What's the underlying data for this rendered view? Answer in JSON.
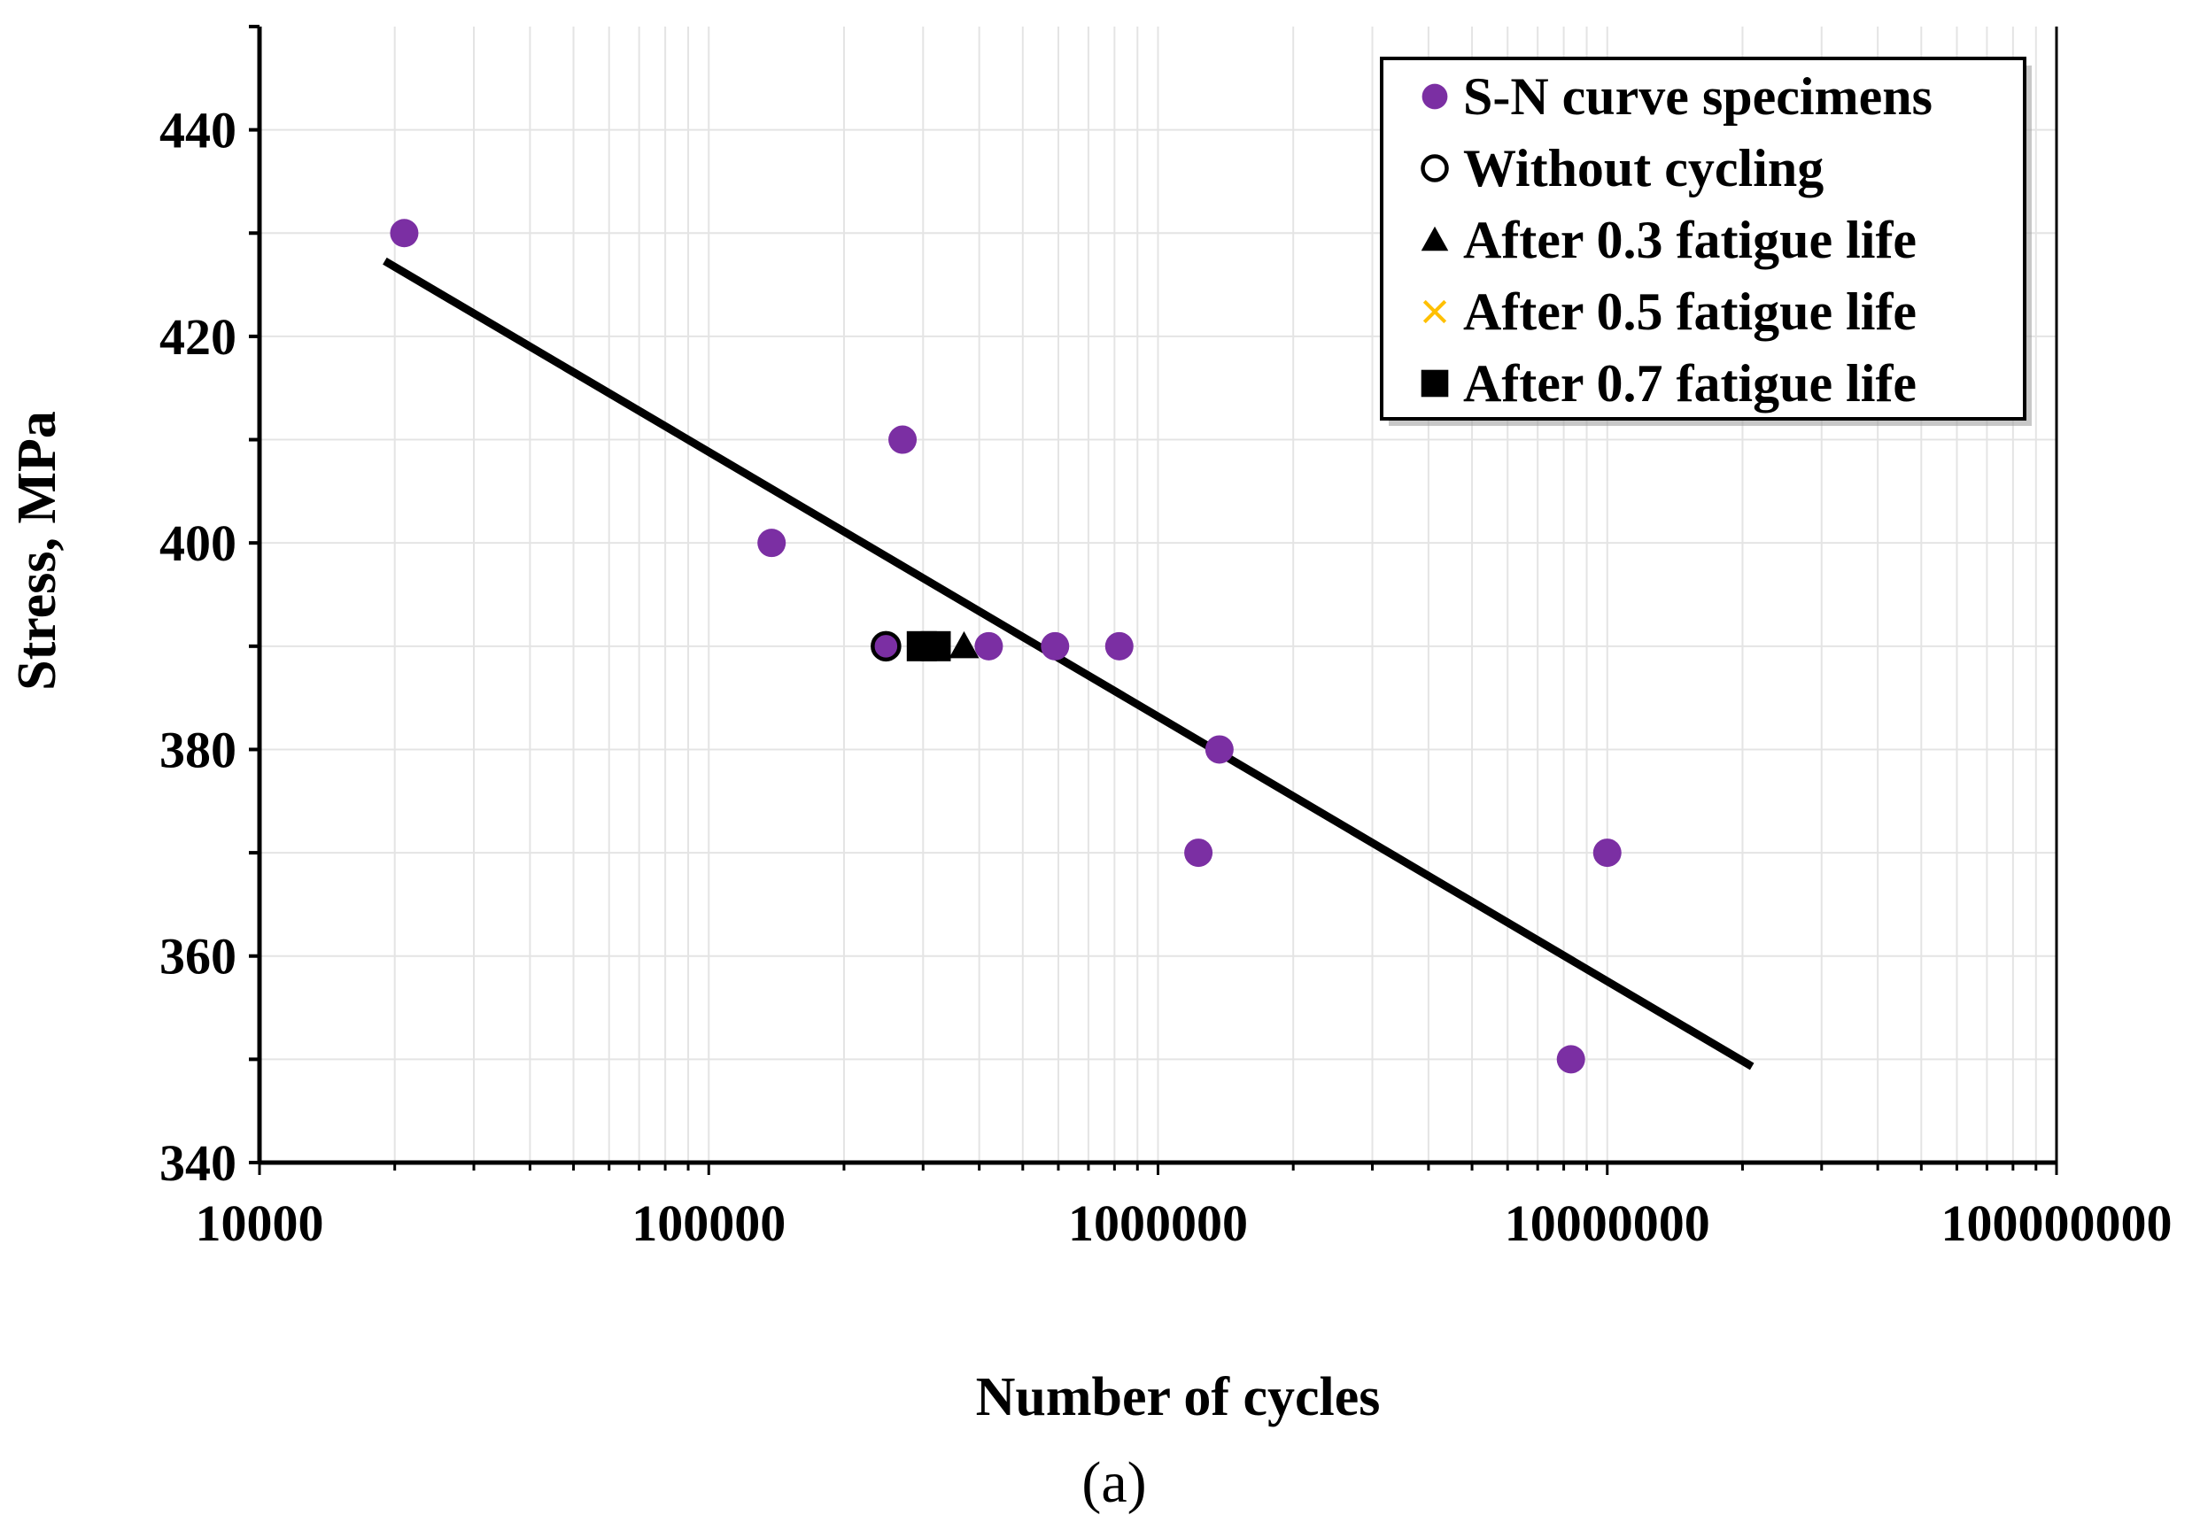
{
  "chart_data": {
    "type": "scatter",
    "xscale": "log",
    "xlabel": "Number of cycles",
    "ylabel": "Stress, MPa",
    "caption": "(a)",
    "xlim": [
      10000,
      100000000
    ],
    "ylim": [
      340,
      450
    ],
    "xticks": [
      10000,
      100000,
      1000000,
      10000000,
      100000000
    ],
    "xtick_labels": [
      "10000",
      "100000",
      "1000000",
      "10000000",
      "100000000"
    ],
    "yticks": [
      340,
      360,
      380,
      400,
      420,
      440
    ],
    "ytick_labels": [
      "340",
      "360",
      "380",
      "400",
      "420",
      "440"
    ],
    "grid": true,
    "legend_position": "top-right",
    "series": [
      {
        "name": "S-N curve specimens",
        "marker": "circle",
        "color": "#7B2FA3",
        "points": [
          {
            "x": 21000,
            "y": 430
          },
          {
            "x": 138000,
            "y": 400
          },
          {
            "x": 270000,
            "y": 410
          },
          {
            "x": 248000,
            "y": 390
          },
          {
            "x": 420000,
            "y": 390
          },
          {
            "x": 590000,
            "y": 390
          },
          {
            "x": 820000,
            "y": 390
          },
          {
            "x": 1230000,
            "y": 370
          },
          {
            "x": 1370000,
            "y": 380
          },
          {
            "x": 8300000,
            "y": 350
          },
          {
            "x": 10000000,
            "y": 370
          }
        ]
      },
      {
        "name": "Without cycling",
        "marker": "open-circle",
        "color": "#000000",
        "points": [
          {
            "x": 248000,
            "y": 390
          }
        ]
      },
      {
        "name": "After 0.3 fatigue life",
        "marker": "triangle",
        "color": "#000000",
        "points": [
          {
            "x": 370000,
            "y": 390
          }
        ]
      },
      {
        "name": "After 0.5 fatigue life",
        "marker": "x",
        "color": "#FFC000",
        "points": []
      },
      {
        "name": "After 0.7 fatigue life",
        "marker": "square",
        "color": "#000000",
        "points": [
          {
            "x": 298000,
            "y": 390
          },
          {
            "x": 320000,
            "y": 390
          }
        ]
      }
    ],
    "trendline": {
      "color": "#000000",
      "points": [
        {
          "x": 19000,
          "y": 427.3
        },
        {
          "x": 21000000,
          "y": 349.3
        }
      ]
    }
  }
}
